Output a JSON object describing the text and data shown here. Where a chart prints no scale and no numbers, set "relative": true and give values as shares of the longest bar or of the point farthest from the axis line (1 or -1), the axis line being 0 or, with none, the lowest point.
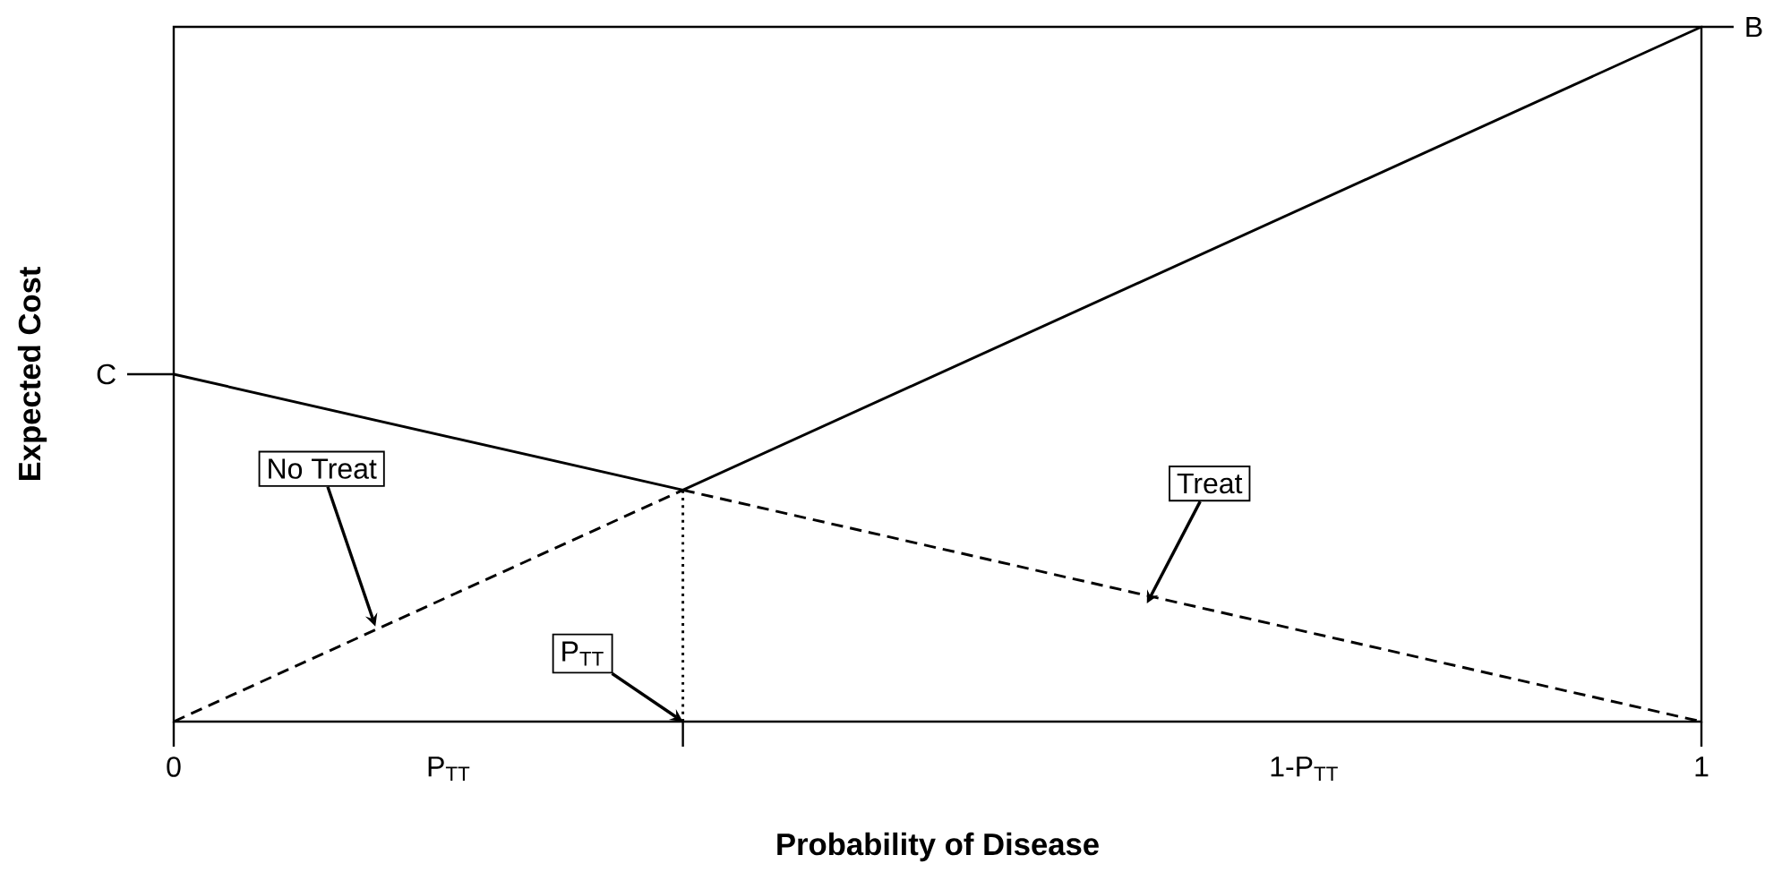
{
  "chart_data": {
    "type": "line",
    "relative": true,
    "xlabel": "Probability of Disease",
    "ylabel": "Expected Cost",
    "xlim": [
      0,
      1
    ],
    "xticks": [
      0,
      {
        "value": 0.18,
        "label": "P$_{TT}$"
      },
      {
        "value": 0.3333,
        "label": null
      },
      {
        "value": 0.74,
        "label": "1-P$_{TT}$"
      },
      1
    ],
    "series": [
      {
        "color": "#000000",
        "line_style": "dashed",
        "x": [
          0,
          0.3333
        ],
        "values": [
          0,
          0.3333
        ]
      },
      {
        "color": "#000000",
        "line_style": "solid",
        "x": [
          0.3333,
          1
        ],
        "values": [
          0.3333,
          1
        ]
      },
      {
        "color": "#000000",
        "line_style": "solid",
        "x": [
          0,
          0.3333
        ],
        "values": [
          0.5,
          0.3333
        ]
      },
      {
        "color": "#000000",
        "line_style": "dashed",
        "x": [
          0.3333,
          1
        ],
        "values": [
          0.3333,
          0
        ]
      },
      {
        "color": "#000000",
        "line_style": "dotted",
        "x": [
          0.3333,
          0.3333
        ],
        "values": [
          0,
          0.3333
        ]
      }
    ],
    "annotations": [
      {
        "text": "No Treat",
        "x": 0.132,
        "y": 0.137
      },
      {
        "text": "Treat",
        "x": 0.637,
        "y": 0.17
      },
      {
        "text": "P$_{TT}$",
        "x": 0.3333,
        "y": 0
      },
      {
        "text": "C",
        "x": 0,
        "y": 0.5
      },
      {
        "text": "B",
        "x": 1,
        "y": 1
      }
    ]
  }
}
